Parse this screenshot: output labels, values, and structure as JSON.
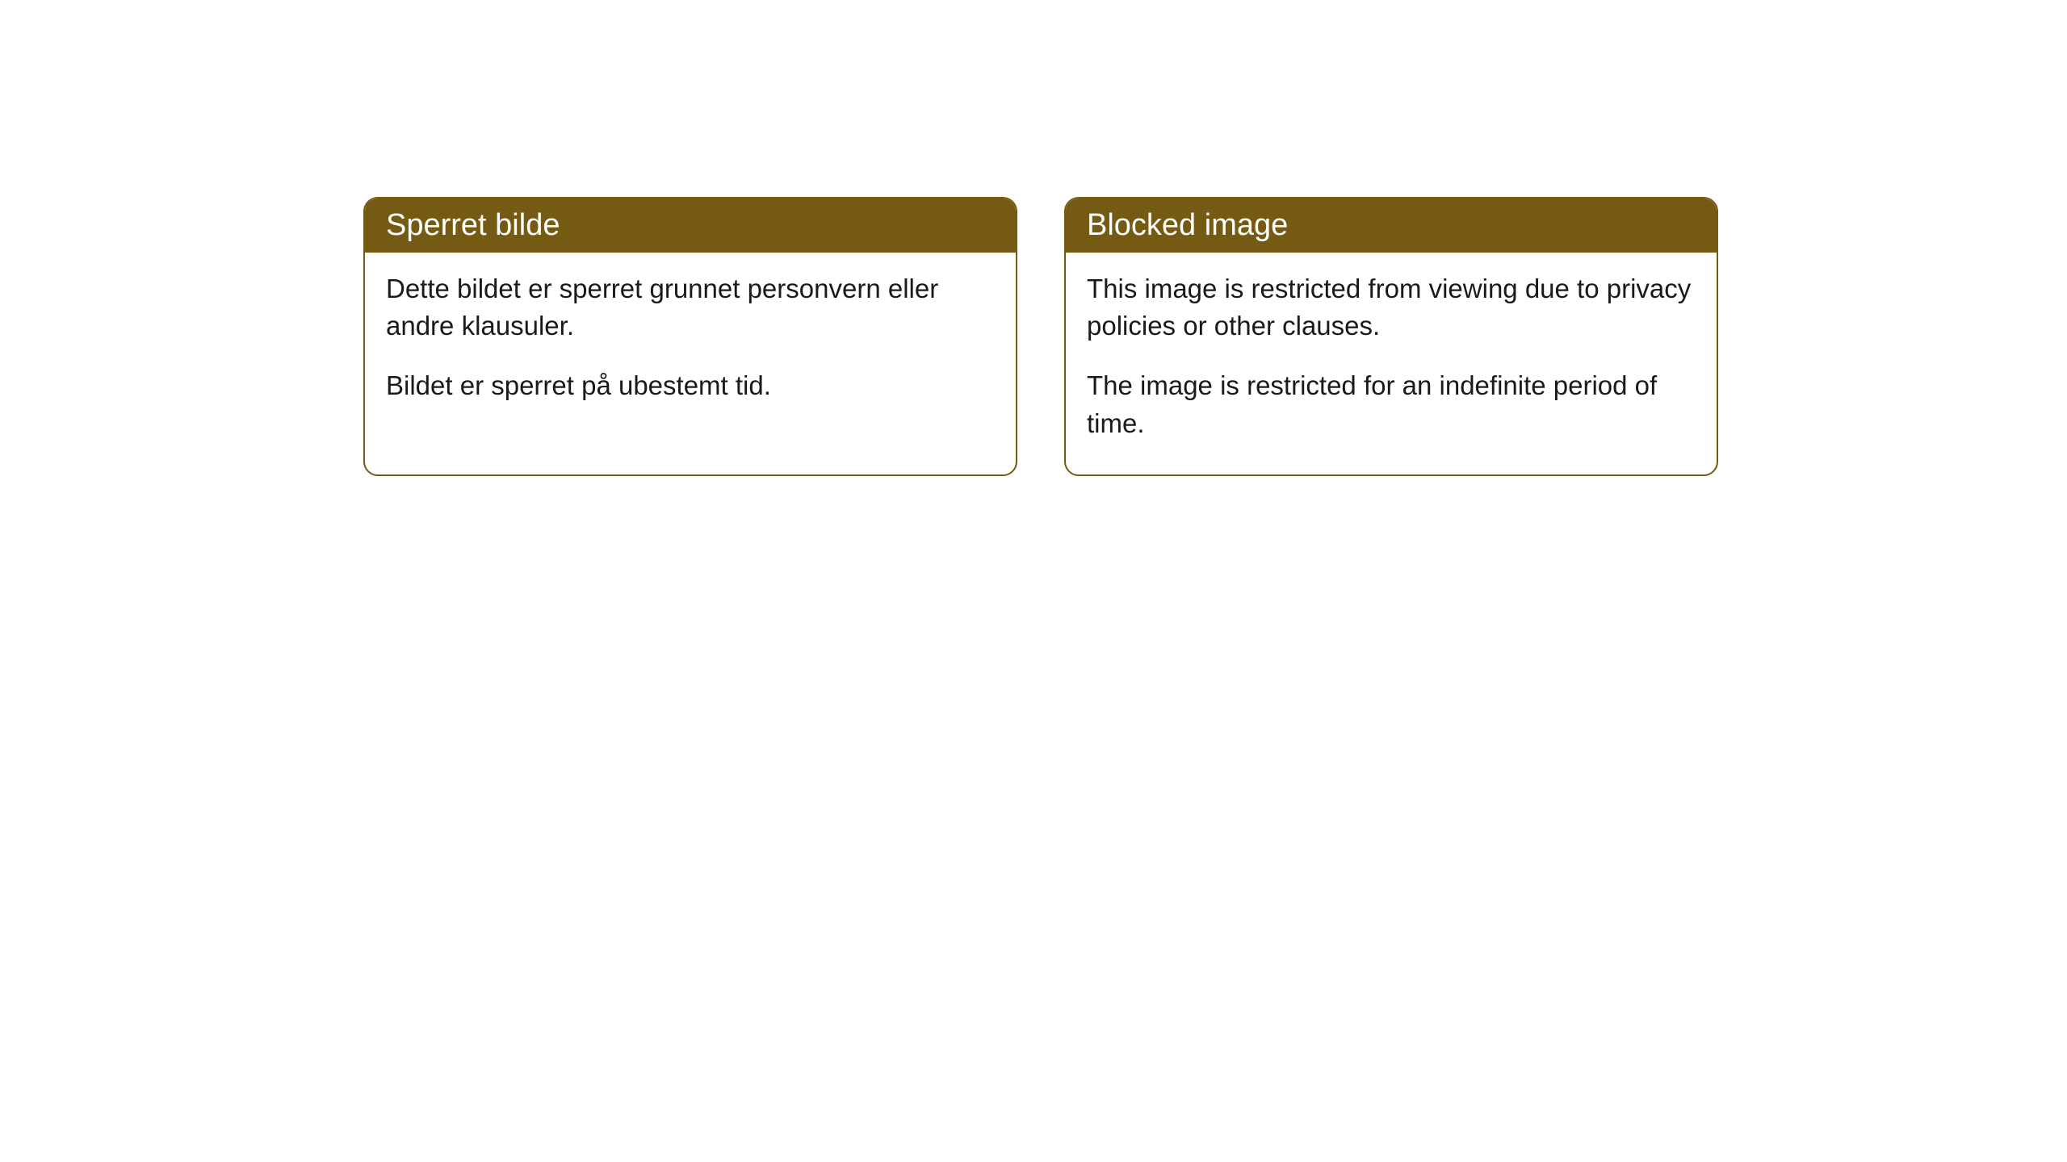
{
  "cards": [
    {
      "title": "Sperret bilde",
      "paragraph1": "Dette bildet er sperret grunnet personvern eller andre klausuler.",
      "paragraph2": "Bildet er sperret på ubestemt tid."
    },
    {
      "title": "Blocked image",
      "paragraph1": "This image is restricted from viewing due to privacy policies or other clauses.",
      "paragraph2": "The image is restricted for an indefinite period of time."
    }
  ],
  "style": {
    "header_background": "#755a13",
    "header_text_color": "#ffffff",
    "border_color": "#755a13",
    "body_background": "#ffffff",
    "body_text_color": "#1a1a1a",
    "border_radius": 18,
    "title_fontsize": 38,
    "body_fontsize": 33
  }
}
